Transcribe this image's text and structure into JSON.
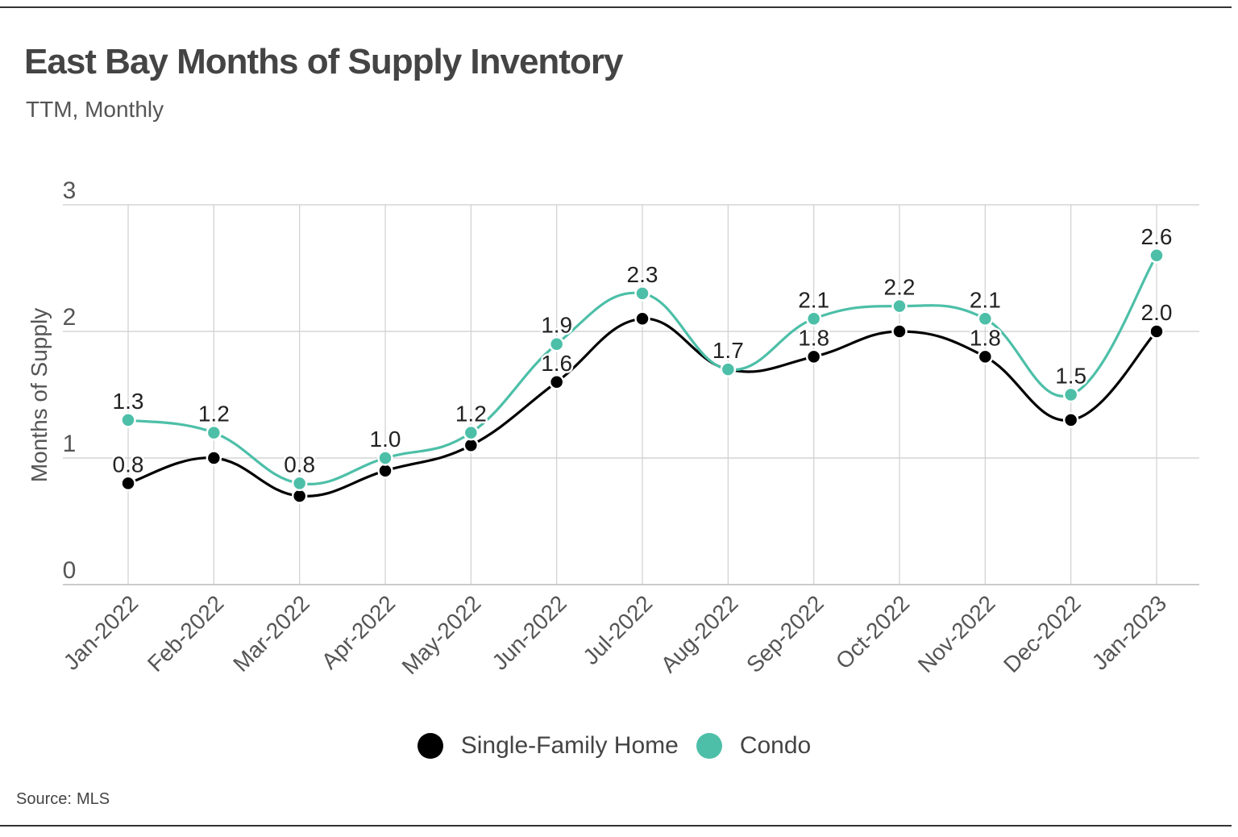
{
  "chart_data": {
    "type": "line",
    "title": "East Bay Months of Supply Inventory",
    "subtitle": "TTM, Monthly",
    "xlabel": "",
    "ylabel": "Months of Supply",
    "ylim": [
      0,
      3
    ],
    "yticks": [
      0,
      1,
      2,
      3
    ],
    "grid": true,
    "smooth": true,
    "legend_position": "bottom-center",
    "categories": [
      "Jan-2022",
      "Feb-2022",
      "Mar-2022",
      "Apr-2022",
      "May-2022",
      "Jun-2022",
      "Jul-2022",
      "Aug-2022",
      "Sep-2022",
      "Oct-2022",
      "Nov-2022",
      "Dec-2022",
      "Jan-2023"
    ],
    "series": [
      {
        "name": "Single-Family Home",
        "color": "#000000",
        "values": [
          0.8,
          1.0,
          0.7,
          0.9,
          1.1,
          1.6,
          2.1,
          1.7,
          1.8,
          2.0,
          1.8,
          1.3,
          2.0
        ],
        "labels": [
          "0.8",
          "",
          "",
          "",
          "",
          "1.6",
          "",
          "",
          "1.8",
          "",
          "1.8",
          "",
          "2.0"
        ]
      },
      {
        "name": "Condo",
        "color": "#4dbfa8",
        "values": [
          1.3,
          1.2,
          0.8,
          1.0,
          1.2,
          1.9,
          2.3,
          1.7,
          2.1,
          2.2,
          2.1,
          1.5,
          2.6
        ],
        "labels": [
          "1.3",
          "1.2",
          "0.8",
          "1.0",
          "1.2",
          "1.9",
          "2.3",
          "1.7",
          "2.1",
          "2.2",
          "2.1",
          "1.5",
          "2.6"
        ]
      }
    ]
  },
  "source": {
    "label": "Source:",
    "value": "MLS"
  }
}
